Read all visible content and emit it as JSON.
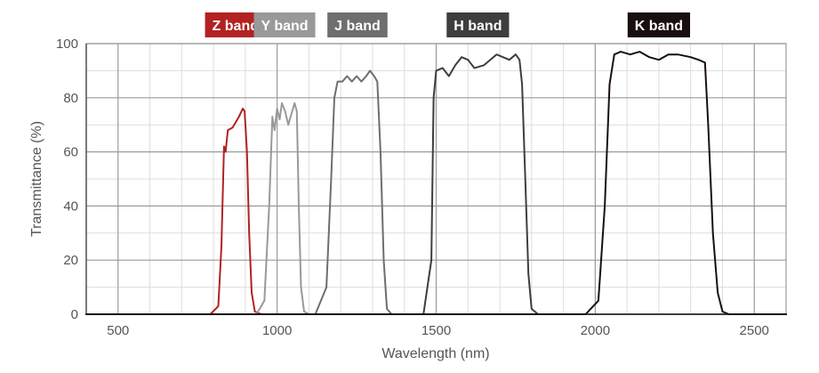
{
  "chart_data": {
    "type": "line",
    "xlabel": "Wavelength (nm)",
    "ylabel": "Transmittance (%)",
    "xlim": [
      400,
      2600
    ],
    "ylim": [
      0,
      100
    ],
    "x_ticks": [
      500,
      1000,
      1500,
      2000,
      2500
    ],
    "y_ticks": [
      0,
      20,
      40,
      60,
      80,
      100
    ],
    "x_minor_step": 100,
    "y_minor_step": 10,
    "grid": true,
    "series": [
      {
        "name": "Z band",
        "color": "#b22222",
        "points": [
          [
            400,
            0
          ],
          [
            790,
            0
          ],
          [
            815,
            3
          ],
          [
            825,
            25
          ],
          [
            833,
            62
          ],
          [
            838,
            60
          ],
          [
            845,
            68
          ],
          [
            860,
            69
          ],
          [
            870,
            71
          ],
          [
            880,
            73
          ],
          [
            892,
            76
          ],
          [
            898,
            75
          ],
          [
            905,
            60
          ],
          [
            912,
            30
          ],
          [
            920,
            8
          ],
          [
            930,
            1
          ],
          [
            950,
            0
          ],
          [
            2600,
            0
          ]
        ]
      },
      {
        "name": "Y band",
        "color": "#999999",
        "points": [
          [
            400,
            0
          ],
          [
            935,
            0
          ],
          [
            960,
            5
          ],
          [
            975,
            40
          ],
          [
            985,
            73
          ],
          [
            992,
            68
          ],
          [
            1000,
            76
          ],
          [
            1008,
            72
          ],
          [
            1015,
            78
          ],
          [
            1025,
            75
          ],
          [
            1035,
            70
          ],
          [
            1045,
            74
          ],
          [
            1055,
            78
          ],
          [
            1062,
            75
          ],
          [
            1068,
            40
          ],
          [
            1075,
            10
          ],
          [
            1085,
            1
          ],
          [
            1100,
            0
          ],
          [
            2600,
            0
          ]
        ]
      },
      {
        "name": "J band",
        "color": "#6e6e6e",
        "points": [
          [
            400,
            0
          ],
          [
            1120,
            0
          ],
          [
            1155,
            10
          ],
          [
            1170,
            50
          ],
          [
            1180,
            80
          ],
          [
            1190,
            86
          ],
          [
            1205,
            86
          ],
          [
            1220,
            88
          ],
          [
            1235,
            86
          ],
          [
            1250,
            88
          ],
          [
            1265,
            86
          ],
          [
            1280,
            88
          ],
          [
            1292,
            90
          ],
          [
            1305,
            88
          ],
          [
            1315,
            86
          ],
          [
            1325,
            60
          ],
          [
            1335,
            20
          ],
          [
            1345,
            2
          ],
          [
            1360,
            0
          ],
          [
            2600,
            0
          ]
        ]
      },
      {
        "name": "H band",
        "color": "#3e3e3e",
        "points": [
          [
            400,
            0
          ],
          [
            1460,
            0
          ],
          [
            1485,
            20
          ],
          [
            1492,
            80
          ],
          [
            1500,
            90
          ],
          [
            1520,
            91
          ],
          [
            1540,
            88
          ],
          [
            1560,
            92
          ],
          [
            1580,
            95
          ],
          [
            1600,
            94
          ],
          [
            1620,
            91
          ],
          [
            1650,
            92
          ],
          [
            1670,
            94
          ],
          [
            1690,
            96
          ],
          [
            1710,
            95
          ],
          [
            1730,
            94
          ],
          [
            1750,
            96
          ],
          [
            1762,
            94
          ],
          [
            1770,
            85
          ],
          [
            1780,
            50
          ],
          [
            1790,
            15
          ],
          [
            1800,
            2
          ],
          [
            1820,
            0
          ],
          [
            2600,
            0
          ]
        ]
      },
      {
        "name": "K band",
        "color": "#1a0f0f",
        "points": [
          [
            400,
            0
          ],
          [
            1970,
            0
          ],
          [
            2010,
            5
          ],
          [
            2030,
            40
          ],
          [
            2045,
            85
          ],
          [
            2060,
            96
          ],
          [
            2080,
            97
          ],
          [
            2110,
            96
          ],
          [
            2140,
            97
          ],
          [
            2170,
            95
          ],
          [
            2200,
            94
          ],
          [
            2230,
            96
          ],
          [
            2260,
            96
          ],
          [
            2300,
            95
          ],
          [
            2325,
            94
          ],
          [
            2345,
            93
          ],
          [
            2355,
            70
          ],
          [
            2370,
            30
          ],
          [
            2385,
            8
          ],
          [
            2400,
            1
          ],
          [
            2420,
            0
          ],
          [
            2600,
            0
          ]
        ]
      }
    ]
  }
}
